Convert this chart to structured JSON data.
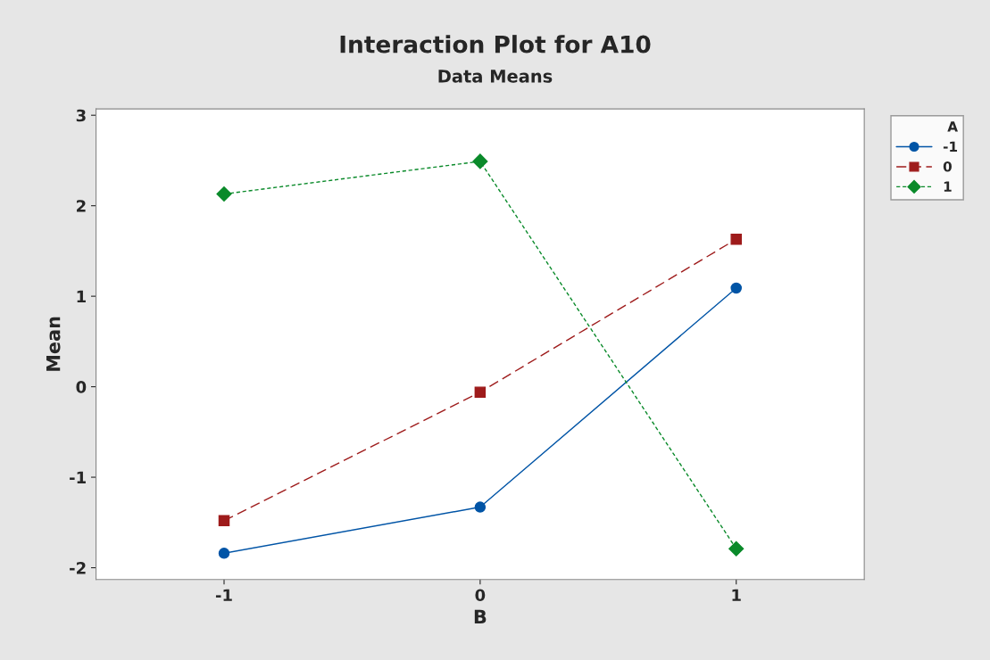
{
  "chart_data": {
    "type": "line",
    "title": "Interaction Plot for A10",
    "subtitle": "Data Means",
    "xlabel": "B",
    "ylabel": "Mean",
    "legend_title": "A",
    "x": [
      -1,
      0,
      1
    ],
    "series": [
      {
        "name": "-1",
        "color": "#0054a6",
        "values": [
          -1.84,
          -1.33,
          1.09
        ],
        "marker": "circle",
        "line_style": "solid"
      },
      {
        "name": "0",
        "color": "#9e1b1b",
        "values": [
          -1.48,
          -0.06,
          1.63
        ],
        "marker": "square",
        "line_style": "dashed"
      },
      {
        "name": "1",
        "color": "#0a8a2a",
        "values": [
          2.13,
          2.49,
          -1.79
        ],
        "marker": "diamond",
        "line_style": "dotted"
      }
    ],
    "xlim": [
      -1.5,
      1.5
    ],
    "xticks": [
      {
        "value": -1,
        "label": "-1"
      },
      0,
      1
    ],
    "ylim": [
      -2.13,
      3.07
    ],
    "yticks": [
      {
        "value": -2,
        "label": "-2"
      },
      {
        "value": -1,
        "label": "-1"
      },
      0,
      1,
      2,
      3
    ],
    "grid": false,
    "legend": "top right"
  }
}
